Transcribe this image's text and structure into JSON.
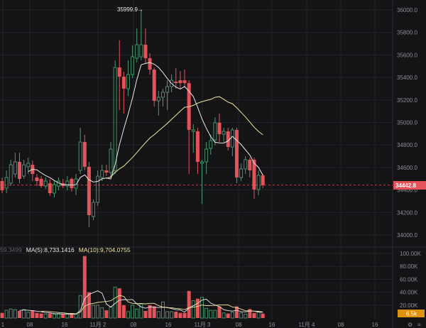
{
  "price_axis": {
    "ticks": [
      "36000.0",
      "35800.0",
      "35600.0",
      "35400.0",
      "35200.0",
      "35000.0",
      "34800.0",
      "34600.0",
      "34400.0",
      "34200.0",
      "34000.0"
    ]
  },
  "volume_axis": {
    "ticks": [
      "100.00K",
      "80.00K",
      "60.00K",
      "40.00K",
      "20.00K"
    ]
  },
  "time_axis": {
    "labels": [
      "1",
      "08",
      "16",
      "11月 2",
      "08",
      "16",
      "11月 3",
      "08",
      "16",
      "11月 4",
      "08",
      "16"
    ]
  },
  "corner_icons": [
    "settings-icon",
    "menu-icon"
  ],
  "high_marker": "35999.9",
  "last_price": "34442.8",
  "last_volume": "6.5k",
  "volume_legend": {
    "cut_value": "59.3499",
    "ma5": "MA(5):8,733.1416",
    "ma10": "MA(10):9,704.0755"
  },
  "colors": {
    "up": "#4c9a72",
    "down": "#e5535a",
    "ma_fast": "#e9e9e9",
    "ma_slow": "#f0e6a0",
    "last_price_bg": "#e5535a",
    "volume_bg": "#e0920d"
  },
  "chart_data": {
    "type": "candlestick",
    "candles_ohlc": [
      [
        34479,
        34511,
        34372,
        34397
      ],
      [
        34416,
        34574,
        34372,
        34511
      ],
      [
        34460,
        34669,
        34435,
        34624
      ],
      [
        34542,
        34732,
        34511,
        34650
      ],
      [
        34650,
        34732,
        34460,
        34498
      ],
      [
        34523,
        34669,
        34498,
        34624
      ],
      [
        34606,
        34687,
        34542,
        34637
      ],
      [
        34624,
        34662,
        34479,
        34542
      ],
      [
        34511,
        34542,
        34435,
        34479
      ],
      [
        34498,
        34523,
        34416,
        34435
      ],
      [
        34435,
        34511,
        34410,
        34479
      ],
      [
        34460,
        34498,
        34347,
        34372
      ],
      [
        34372,
        34479,
        34334,
        34448
      ],
      [
        34435,
        34511,
        34397,
        34479
      ],
      [
        34460,
        34498,
        34416,
        34435
      ],
      [
        34435,
        34523,
        34397,
        34479
      ],
      [
        34498,
        34511,
        34385,
        34416
      ],
      [
        34416,
        34542,
        34353,
        34498
      ],
      [
        34574,
        34953,
        34542,
        34826
      ],
      [
        34826,
        34890,
        34574,
        34606
      ],
      [
        34606,
        34650,
        34069,
        34176
      ],
      [
        34164,
        34316,
        34132,
        34290
      ],
      [
        34290,
        34574,
        34258,
        34523
      ],
      [
        34511,
        34624,
        34479,
        34574
      ],
      [
        34574,
        34624,
        34523,
        34555
      ],
      [
        34555,
        34826,
        34511,
        34763
      ],
      [
        34574,
        35552,
        34542,
        35489
      ],
      [
        35489,
        35729,
        35110,
        35407
      ],
      [
        35407,
        35450,
        35079,
        35300
      ],
      [
        35300,
        35552,
        35236,
        35426
      ],
      [
        35426,
        35685,
        35394,
        35584
      ],
      [
        35571,
        35836,
        35533,
        35691
      ],
      [
        35584,
        35999.9,
        35552,
        35691
      ],
      [
        35691,
        35836,
        35520,
        35571
      ],
      [
        35571,
        35615,
        35426,
        35470
      ],
      [
        35470,
        35489,
        35142,
        35192
      ],
      [
        35192,
        35281,
        35060,
        35224
      ],
      [
        35224,
        35300,
        35142,
        35268
      ],
      [
        35268,
        35375,
        35110,
        35319
      ],
      [
        35319,
        35426,
        35268,
        35375
      ],
      [
        35363,
        35483,
        35300,
        35350
      ],
      [
        35375,
        35457,
        35300,
        35350
      ],
      [
        35375,
        35470,
        35319,
        35350
      ],
      [
        35350,
        35375,
        34542,
        34934
      ],
      [
        34921,
        34984,
        34732,
        34934
      ],
      [
        34921,
        34953,
        34542,
        34650
      ],
      [
        34637,
        34669,
        34277,
        34650
      ],
      [
        34650,
        34826,
        34542,
        34763
      ],
      [
        34770,
        34890,
        34713,
        34839
      ],
      [
        34845,
        35047,
        34795,
        34997
      ],
      [
        34997,
        35079,
        34826,
        34896
      ],
      [
        34896,
        34953,
        34826,
        34921
      ],
      [
        34921,
        34953,
        34751,
        34782
      ],
      [
        34782,
        34953,
        34700,
        34934
      ],
      [
        34934,
        34953,
        34460,
        34511
      ],
      [
        34511,
        34637,
        34479,
        34587
      ],
      [
        34587,
        34700,
        34542,
        34669
      ],
      [
        34669,
        34687,
        34511,
        34574
      ],
      [
        34669,
        34687,
        34322,
        34404
      ],
      [
        34404,
        34574,
        34353,
        34530
      ],
      [
        34530,
        34542,
        34416,
        34442.8
      ]
    ],
    "volumes_k": [
      8,
      12,
      14,
      13,
      11,
      13,
      9,
      12,
      8,
      7,
      6,
      7,
      6,
      7,
      6,
      6,
      6,
      6,
      35,
      96,
      40,
      20,
      20,
      16,
      12,
      17,
      48,
      46,
      20,
      10,
      20,
      14,
      22,
      11,
      20,
      18,
      10,
      25,
      10,
      10,
      10,
      8,
      8,
      42,
      27,
      30,
      32,
      15,
      12,
      12,
      18,
      8,
      7,
      9,
      18,
      8,
      6,
      14,
      8,
      10,
      7
    ],
    "price_range": [
      34000,
      36000
    ],
    "volume_range": [
      0,
      100000
    ],
    "grid": true
  }
}
